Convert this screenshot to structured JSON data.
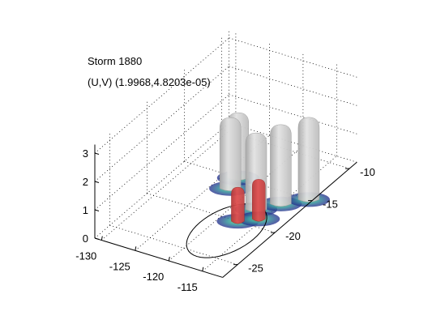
{
  "chart_data": {
    "type": "surface3d",
    "title": "Storm 1880",
    "subtitle": "(U,V) (1.9968,4.8203e-05)",
    "x_ticks": [
      "-130",
      "-125",
      "-120",
      "-115"
    ],
    "y_ticks": [
      "-10",
      "-15",
      "-20",
      "-25"
    ],
    "z_ticks": [
      "0",
      "1",
      "2",
      "3"
    ],
    "xlim": [
      -131,
      -112
    ],
    "ylim": [
      -27,
      -9
    ],
    "zlim": [
      0,
      3.3
    ],
    "grid": true,
    "isosurfaces": [
      {
        "color": "#e3e3e3",
        "role": "outer isosurface"
      },
      {
        "color": "#e04f4f",
        "role": "inner isosurface"
      }
    ],
    "peaks": [
      {
        "x": -122.5,
        "y": -16.5,
        "z": 2.5
      },
      {
        "x": -123.0,
        "y": -15.0,
        "z": 2.3
      },
      {
        "x": -117.0,
        "y": -18.0,
        "z": 2.7
      },
      {
        "x": -115.0,
        "y": -16.5,
        "z": 2.8
      },
      {
        "x": -112.5,
        "y": -15.0,
        "z": 2.9
      },
      {
        "x": -117.5,
        "y": -20.0,
        "z": 1.2
      },
      {
        "x": -115.5,
        "y": -19.0,
        "z": 1.4
      }
    ],
    "circle": {
      "center_x": -117.5,
      "center_y": -21.5,
      "radius": 4.0
    }
  }
}
